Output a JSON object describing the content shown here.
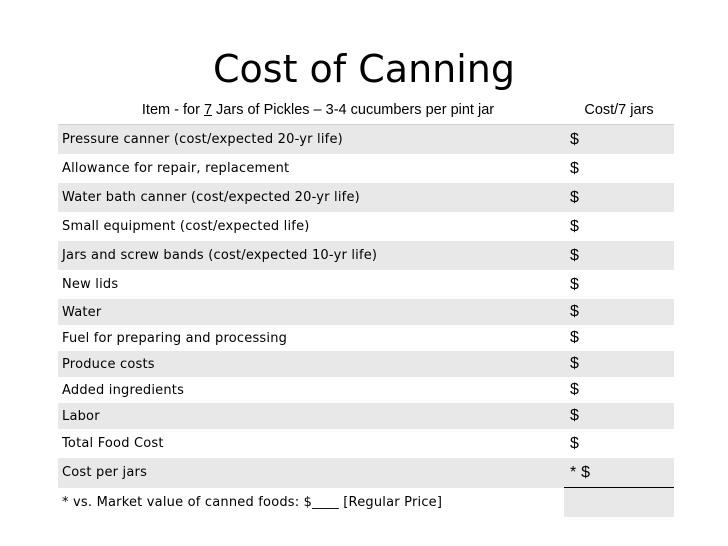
{
  "title": "Cost of Canning",
  "header": {
    "item_prefix": "Item - for ",
    "jar_count": "7",
    "item_suffix": " Jars of Pickles – 3-4 cucumbers  per pint jar",
    "cost_label": "Cost/7 jars"
  },
  "rows": [
    {
      "item": "Pressure canner (cost/expected 20-yr life)",
      "cost": "$"
    },
    {
      "item": "Allowance for repair, replacement",
      "cost": "$"
    },
    {
      "item": "Water bath canner (cost/expected 20-yr life)",
      "cost": "$"
    },
    {
      "item": "Small equipment (cost/expected life)",
      "cost": "$"
    },
    {
      "item": "Jars and screw bands (cost/expected 10-yr life)",
      "cost": "$"
    },
    {
      "item": "New lids",
      "cost": "$"
    },
    {
      "item": "Water",
      "cost": "$"
    },
    {
      "item": "Fuel for preparing and processing",
      "cost": "$"
    },
    {
      "item": "Produce costs",
      "cost": "$"
    },
    {
      "item": "Added ingredients",
      "cost": "$"
    },
    {
      "item": "Labor",
      "cost": "$"
    },
    {
      "item": "Total Food Cost",
      "cost": "$"
    },
    {
      "item": "Cost per jars",
      "cost": "* $"
    },
    {
      "item": "* vs. Market value of canned foods: $____ [Regular Price]",
      "cost": ""
    }
  ]
}
